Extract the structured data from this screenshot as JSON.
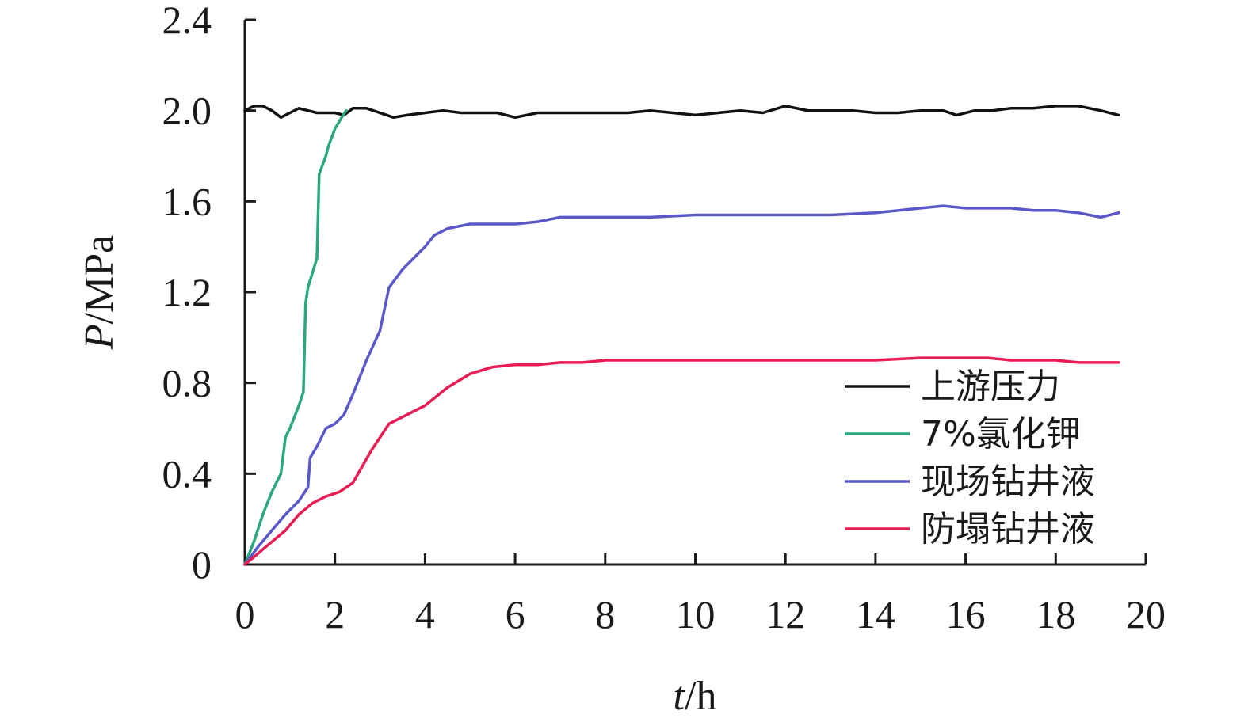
{
  "chart_data": {
    "type": "line",
    "xlabel": {
      "var": "t",
      "unit": "/h"
    },
    "ylabel": {
      "var": "P",
      "unit": "/MPa"
    },
    "xlim": [
      0,
      20
    ],
    "ylim": [
      0,
      2.4
    ],
    "x_ticks": [
      "0",
      "2",
      "4",
      "6",
      "8",
      "10",
      "12",
      "14",
      "16",
      "18",
      "20"
    ],
    "y_ticks": [
      "0",
      "0.4",
      "0.8",
      "1.2",
      "1.6",
      "2.0",
      "2.4"
    ],
    "grid": false,
    "legend_position": "bottom-right",
    "series": [
      {
        "name": "上游压力",
        "color": "#111111",
        "x": [
          0,
          0.2,
          0.4,
          0.6,
          0.8,
          1.0,
          1.2,
          1.4,
          1.6,
          1.8,
          2.0,
          2.2,
          2.4,
          2.7,
          3.0,
          3.3,
          3.6,
          4.0,
          4.4,
          4.8,
          5.2,
          5.6,
          6.0,
          6.5,
          7.0,
          7.5,
          8.0,
          8.5,
          9.0,
          9.5,
          10.0,
          10.5,
          11.0,
          11.5,
          12.0,
          12.5,
          13.0,
          13.5,
          14.0,
          14.5,
          15.0,
          15.5,
          15.8,
          16.2,
          16.6,
          17.0,
          17.5,
          18.0,
          18.5,
          19.0,
          19.4
        ],
        "y": [
          2.0,
          2.02,
          2.02,
          2.0,
          1.97,
          1.99,
          2.01,
          2.0,
          1.99,
          1.99,
          1.99,
          1.98,
          2.01,
          2.01,
          1.99,
          1.97,
          1.98,
          1.99,
          2.0,
          1.99,
          1.99,
          1.99,
          1.97,
          1.99,
          1.99,
          1.99,
          1.99,
          1.99,
          2.0,
          1.99,
          1.98,
          1.99,
          2.0,
          1.99,
          2.02,
          2.0,
          2.0,
          2.0,
          1.99,
          1.99,
          2.0,
          2.0,
          1.98,
          2.0,
          2.0,
          2.01,
          2.01,
          2.02,
          2.02,
          2.0,
          1.98
        ]
      },
      {
        "name": "7%氯化钾",
        "color": "#2aa87a",
        "x": [
          0,
          0.2,
          0.4,
          0.6,
          0.8,
          0.9,
          1.0,
          1.2,
          1.3,
          1.35,
          1.4,
          1.6,
          1.65,
          1.8,
          1.85,
          2.0,
          2.15,
          2.25
        ],
        "y": [
          0,
          0.1,
          0.22,
          0.32,
          0.4,
          0.56,
          0.6,
          0.7,
          0.76,
          1.15,
          1.22,
          1.35,
          1.72,
          1.8,
          1.84,
          1.92,
          1.97,
          2.0
        ]
      },
      {
        "name": "现场钻井液",
        "color": "#5a58c8",
        "x": [
          0,
          0.3,
          0.6,
          0.9,
          1.2,
          1.4,
          1.45,
          1.6,
          1.8,
          2.0,
          2.2,
          2.4,
          2.7,
          3.0,
          3.2,
          3.5,
          3.8,
          4.0,
          4.2,
          4.5,
          5.0,
          5.5,
          6.0,
          6.5,
          7.0,
          7.5,
          8.0,
          9.0,
          10.0,
          11.0,
          12.0,
          13.0,
          14.0,
          15.0,
          15.5,
          16.0,
          17.0,
          17.5,
          18.0,
          18.5,
          19.0,
          19.4
        ],
        "y": [
          0,
          0.08,
          0.15,
          0.22,
          0.28,
          0.34,
          0.47,
          0.52,
          0.6,
          0.62,
          0.66,
          0.75,
          0.9,
          1.03,
          1.22,
          1.3,
          1.36,
          1.4,
          1.45,
          1.48,
          1.5,
          1.5,
          1.5,
          1.51,
          1.53,
          1.53,
          1.53,
          1.53,
          1.54,
          1.54,
          1.54,
          1.54,
          1.55,
          1.57,
          1.58,
          1.57,
          1.57,
          1.56,
          1.56,
          1.55,
          1.53,
          1.55
        ]
      },
      {
        "name": "防塌钻井液",
        "color": "#e81c52",
        "x": [
          0,
          0.3,
          0.6,
          0.9,
          1.2,
          1.5,
          1.8,
          2.1,
          2.4,
          2.8,
          3.2,
          3.6,
          4.0,
          4.5,
          5.0,
          5.5,
          6.0,
          6.5,
          7.0,
          7.5,
          8.0,
          9.0,
          10.0,
          11.0,
          12.0,
          13.0,
          14.0,
          15.0,
          15.5,
          16.5,
          17.0,
          18.0,
          18.5,
          19.0,
          19.4
        ],
        "y": [
          0,
          0.05,
          0.1,
          0.15,
          0.22,
          0.27,
          0.3,
          0.32,
          0.36,
          0.5,
          0.62,
          0.66,
          0.7,
          0.78,
          0.84,
          0.87,
          0.88,
          0.88,
          0.89,
          0.89,
          0.9,
          0.9,
          0.9,
          0.9,
          0.9,
          0.9,
          0.9,
          0.91,
          0.91,
          0.91,
          0.9,
          0.9,
          0.89,
          0.89,
          0.89
        ]
      }
    ]
  }
}
